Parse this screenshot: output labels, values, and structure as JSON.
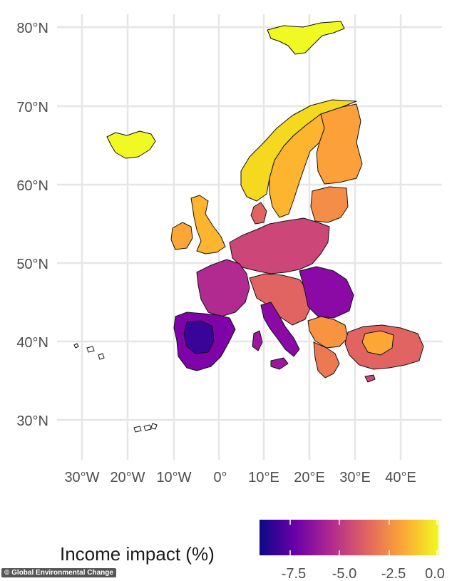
{
  "map": {
    "lat_labels": [
      "80°N",
      "70°N",
      "60°N",
      "50°N",
      "40°N",
      "30°N"
    ],
    "lon_labels": [
      "30°W",
      "20°W",
      "10°W",
      "0°",
      "10°E",
      "20°E",
      "30°E",
      "40°E"
    ],
    "fill_scale": "plasma"
  },
  "legend": {
    "title": "Income impact (%)",
    "ticks": [
      "-7.5",
      "-5.0",
      "-2.5",
      "0.0"
    ],
    "range": [
      -9,
      0
    ],
    "colors": [
      "#0d0887",
      "#6a00a8",
      "#b12a90",
      "#e16462",
      "#fca636",
      "#f0f921"
    ]
  },
  "credit": "© Global Environmental Change"
}
